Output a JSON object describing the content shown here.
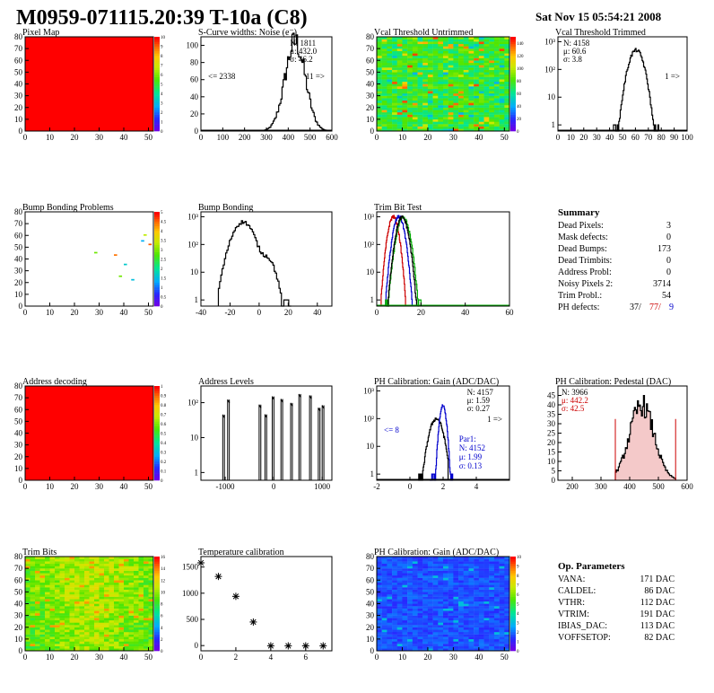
{
  "page": {
    "title": "M0959-071115.20:39 T-10a (C8)",
    "date": "Sat Nov 15 05:54:21 2008"
  },
  "chart_data": [
    {
      "id": "pixel-map",
      "type": "heatmap",
      "title": "Pixel Map",
      "xlim": [
        0,
        52
      ],
      "ylim": [
        0,
        80
      ],
      "xticks": [
        "0",
        "10",
        "20",
        "30",
        "40",
        "50"
      ],
      "yticks": [
        "0",
        "10",
        "20",
        "30",
        "40",
        "50",
        "60",
        "70",
        "80"
      ],
      "zlim": [
        0,
        10
      ],
      "zticks": [
        "0",
        "1",
        "2",
        "3",
        "4",
        "5",
        "6",
        "7",
        "8",
        "9",
        "10"
      ],
      "fill": "uniform-max",
      "value": 10
    },
    {
      "id": "scurve-widths",
      "type": "histogram",
      "title": "S-Curve widths: Noise (e⁻)",
      "xlim": [
        0,
        600
      ],
      "xticks": [
        "0",
        "100",
        "200",
        "300",
        "400",
        "500",
        "600"
      ],
      "ylim": [
        0,
        110
      ],
      "yticks": [
        "0",
        "20",
        "40",
        "60",
        "80",
        "100"
      ],
      "ylog": false,
      "stats": [
        {
          "text": "N: 1811"
        },
        {
          "text": "μ: 432.0"
        },
        {
          "text": "σ: 46.2"
        }
      ],
      "notes": [
        {
          "text": "<= 2338",
          "pos": "left"
        },
        {
          "text": "11 =>",
          "pos": "right"
        }
      ],
      "series": [
        {
          "color": "#000",
          "mu": 432,
          "sigma": 46.2,
          "peak": 104,
          "lo": 285,
          "hi": 590
        }
      ]
    },
    {
      "id": "vcal-untrimmed",
      "type": "heatmap",
      "title": "Vcal Threshold Untrimmed",
      "xlim": [
        0,
        52
      ],
      "ylim": [
        0,
        80
      ],
      "xticks": [
        "0",
        "10",
        "20",
        "30",
        "40",
        "50"
      ],
      "yticks": [
        "0",
        "10",
        "20",
        "30",
        "40",
        "50",
        "60",
        "70",
        "80"
      ],
      "zlim": [
        0,
        150
      ],
      "zticks": [
        "0",
        "20",
        "40",
        "60",
        "80",
        "100",
        "120",
        "140"
      ],
      "fill": "noisy-green",
      "mean": 60
    },
    {
      "id": "vcal-trimmed",
      "type": "histogram",
      "title": "Vcal Threshold Trimmed",
      "xlim": [
        0,
        100
      ],
      "xticks": [
        "0",
        "10",
        "20",
        "30",
        "40",
        "50",
        "60",
        "70",
        "80",
        "90",
        "100"
      ],
      "ylim": [
        0.6,
        1500
      ],
      "ylog": true,
      "yticks": [
        {
          "v": 1,
          "t": "1"
        },
        {
          "v": 10,
          "t": "10"
        },
        {
          "v": 100,
          "t": "10²"
        },
        {
          "v": 1000,
          "t": "10³"
        }
      ],
      "stats": [
        {
          "text": "N: 4158"
        },
        {
          "text": "μ: 60.6"
        },
        {
          "text": "σ: 3.8"
        }
      ],
      "notes": [
        {
          "text": "1 =>",
          "pos": "right"
        }
      ],
      "series": [
        {
          "color": "#000",
          "mu": 60.6,
          "sigma": 3.8,
          "peak": 500,
          "lo": 43,
          "hi": 78
        }
      ]
    },
    {
      "id": "bump-problems",
      "type": "heatmap",
      "title": "Bump Bonding Problems",
      "xlim": [
        0,
        52
      ],
      "ylim": [
        0,
        80
      ],
      "xticks": [
        "0",
        "10",
        "20",
        "30",
        "40",
        "50"
      ],
      "yticks": [
        "0",
        "10",
        "20",
        "30",
        "40",
        "50",
        "60",
        "70",
        "80"
      ],
      "zlim": [
        0,
        5
      ],
      "zticks": [
        "0",
        "0.5",
        "1",
        "1.5",
        "2",
        "2.5",
        "3",
        "3.5",
        "4",
        "4.5",
        "5"
      ],
      "fill": "sparse",
      "points": [
        [
          50,
          52
        ],
        [
          47,
          55
        ],
        [
          48,
          60
        ],
        [
          40,
          35
        ],
        [
          38,
          25
        ],
        [
          43,
          22
        ],
        [
          36,
          43
        ],
        [
          28,
          45
        ]
      ]
    },
    {
      "id": "bump-bonding",
      "type": "histogram",
      "title": "Bump Bonding",
      "xlim": [
        -40,
        50
      ],
      "xticks": [
        "-40",
        "-20",
        "0",
        "20",
        "40"
      ],
      "ylim": [
        0.6,
        1500
      ],
      "ylog": true,
      "yticks": [
        {
          "v": 1,
          "t": "1"
        },
        {
          "v": 10,
          "t": "10"
        },
        {
          "v": 100,
          "t": "10²"
        },
        {
          "v": 1000,
          "t": "10³"
        }
      ],
      "stats": [],
      "notes": [],
      "series": [
        {
          "color": "#000",
          "mu": -11,
          "sigma": 5,
          "peak": 650,
          "lo": -28,
          "hi": 22,
          "mu2": 5,
          "sigma2": 4,
          "peak2": 35
        }
      ]
    },
    {
      "id": "trim-bit-test",
      "type": "histogram",
      "title": "Trim Bit Test",
      "xlim": [
        0,
        60
      ],
      "xticks": [
        "0",
        "20",
        "40",
        "60"
      ],
      "ylim": [
        0.6,
        1500
      ],
      "ylog": true,
      "yticks": [
        {
          "v": 1,
          "t": "1"
        },
        {
          "v": 10,
          "t": "10"
        },
        {
          "v": 100,
          "t": "10²"
        },
        {
          "v": 1000,
          "t": "10³"
        }
      ],
      "stats": [],
      "notes": [],
      "series": [
        {
          "color": "#cc0000",
          "mu": 7.5,
          "sigma": 1.5,
          "peak": 1000,
          "lo": 2,
          "hi": 13
        },
        {
          "color": "#0000cc",
          "mu": 10,
          "sigma": 1.6,
          "peak": 1000,
          "lo": 4,
          "hi": 16
        },
        {
          "color": "#00aa00",
          "mu": 12,
          "sigma": 1.8,
          "peak": 900,
          "lo": 4,
          "hi": 20
        },
        {
          "color": "#000000",
          "mu": 11.5,
          "sigma": 1.7,
          "peak": 950,
          "lo": 5,
          "hi": 18
        }
      ]
    },
    {
      "id": "summary",
      "type": "table",
      "title": "Summary",
      "rows": [
        {
          "label": "Dead Pixels:",
          "value": "3"
        },
        {
          "label": "Mask defects:",
          "value": "0"
        },
        {
          "label": "Dead Bumps:",
          "value": "173"
        },
        {
          "label": "Dead Trimbits:",
          "value": "0"
        },
        {
          "label": "Address Probl:",
          "value": "0"
        },
        {
          "label": "Noisy Pixels 2:",
          "value": "3714"
        },
        {
          "label": "Trim Probl.:",
          "value": "54"
        }
      ],
      "ph_label": "PH defects:",
      "ph_values": [
        {
          "text": "37/",
          "color": "#000"
        },
        {
          "text": "77/",
          "color": "#cc0000"
        },
        {
          "text": "9",
          "color": "#0000cc"
        }
      ]
    },
    {
      "id": "address-decoding",
      "type": "heatmap",
      "title": "Address decoding",
      "xlim": [
        0,
        52
      ],
      "ylim": [
        0,
        80
      ],
      "xticks": [
        "0",
        "10",
        "20",
        "30",
        "40",
        "50"
      ],
      "yticks": [
        "0",
        "10",
        "20",
        "30",
        "40",
        "50",
        "60",
        "70",
        "80"
      ],
      "zlim": [
        0,
        1
      ],
      "zticks": [
        "0",
        "0.1",
        "0.2",
        "0.3",
        "0.4",
        "0.5",
        "0.6",
        "0.7",
        "0.8",
        "0.9",
        "1"
      ],
      "fill": "uniform-max",
      "value": 1
    },
    {
      "id": "address-levels",
      "type": "histogram",
      "title": "Address Levels",
      "xlim": [
        -1500,
        1200
      ],
      "xticks": [
        "-1000",
        "0",
        "1000"
      ],
      "ylim": [
        0.6,
        300
      ],
      "ylog": true,
      "yticks": [
        {
          "v": 1,
          "t": "1"
        },
        {
          "v": 10,
          "t": "10"
        },
        {
          "v": 100,
          "t": "10²"
        }
      ],
      "stats": [],
      "notes": [],
      "series": [
        {
          "color": "#000",
          "spikes": [
            -1050,
            -950,
            -300,
            -180,
            -30,
            150,
            350,
            520,
            740,
            920,
            1000
          ]
        }
      ]
    },
    {
      "id": "ph-gain",
      "type": "histogram",
      "title": "PH Calibration: Gain (ADC/DAC)",
      "xlim": [
        -2,
        6
      ],
      "xticks": [
        "-2",
        "0",
        "2",
        "4"
      ],
      "ylim": [
        0.6,
        1500
      ],
      "ylog": true,
      "yticks": [
        {
          "v": 1,
          "t": "1"
        },
        {
          "v": 10,
          "t": "10"
        },
        {
          "v": 100,
          "t": "10²"
        },
        {
          "v": 1000,
          "t": "10³"
        }
      ],
      "stats": [
        {
          "text": "N: 4157"
        },
        {
          "text": "μ: 1.59"
        },
        {
          "text": "σ: 0.27"
        }
      ],
      "notes": [
        {
          "text": "<= 8",
          "pos": "left",
          "color": "#0000cc"
        },
        {
          "text": "1 =>",
          "pos": "right"
        }
      ],
      "stats2": [
        {
          "text": "Par1:"
        },
        {
          "text": "N: 4152"
        },
        {
          "text": "μ: 1.99"
        },
        {
          "text": "σ: 0.13"
        }
      ],
      "series": [
        {
          "color": "#000",
          "mu": 1.59,
          "sigma": 0.27,
          "peak": 100,
          "lo": 0.5,
          "hi": 2.3
        },
        {
          "color": "#0000cc",
          "mu": 1.99,
          "sigma": 0.13,
          "peak": 300,
          "lo": 1.2,
          "hi": 2.6
        }
      ]
    },
    {
      "id": "ph-pedestal",
      "type": "histogram",
      "title": "PH Calibration: Pedestal (DAC)",
      "xlim": [
        150,
        600
      ],
      "xticks": [
        "200",
        "300",
        "400",
        "500",
        "600"
      ],
      "ylim": [
        0,
        50
      ],
      "yticks": [
        "0",
        "5",
        "10",
        "15",
        "20",
        "25",
        "30",
        "35",
        "40",
        "45"
      ],
      "ylog": false,
      "stats": [
        {
          "text": "N: 3966"
        },
        {
          "text": "μ: 442.2",
          "color": "#cc0000"
        },
        {
          "text": "σ: 42.5",
          "color": "#cc0000"
        }
      ],
      "notes": [],
      "series": [
        {
          "color": "#000",
          "mu": 442.2,
          "sigma": 42.5,
          "peak": 40,
          "lo": 350,
          "hi": 560
        }
      ]
    },
    {
      "id": "trim-bits",
      "type": "heatmap",
      "title": "Trim Bits",
      "xlim": [
        0,
        52
      ],
      "ylim": [
        0,
        80
      ],
      "xticks": [
        "0",
        "10",
        "20",
        "30",
        "40",
        "50"
      ],
      "yticks": [
        "0",
        "10",
        "20",
        "30",
        "40",
        "50",
        "60",
        "70",
        "80"
      ],
      "zlim": [
        0,
        16
      ],
      "zticks": [
        "0",
        "2",
        "4",
        "6",
        "8",
        "10",
        "12",
        "14",
        "16"
      ],
      "fill": "trim"
    },
    {
      "id": "temperature-calibration",
      "type": "scatter",
      "title": "Temperature calibration",
      "xlim": [
        0,
        7.5
      ],
      "xticks": [
        "0",
        "2",
        "4",
        "6"
      ],
      "ylim": [
        -100,
        1700
      ],
      "yticks": [
        "0",
        "500",
        "1000",
        "1500"
      ],
      "points": [
        [
          0,
          1580
        ],
        [
          1,
          1320
        ],
        [
          2,
          940
        ],
        [
          3,
          450
        ],
        [
          4,
          -5
        ],
        [
          5,
          -5
        ],
        [
          6,
          -5
        ],
        [
          7,
          -5
        ]
      ]
    },
    {
      "id": "ph-gain-map",
      "type": "heatmap",
      "title": "PH Calibration: Gain (ADC/DAC)",
      "xlim": [
        0,
        52
      ],
      "ylim": [
        0,
        80
      ],
      "xticks": [
        "0",
        "10",
        "20",
        "30",
        "40",
        "50"
      ],
      "yticks": [
        "0",
        "10",
        "20",
        "30",
        "40",
        "50",
        "60",
        "70",
        "80"
      ],
      "zlim": [
        0,
        10
      ],
      "zticks": [
        "0",
        "1",
        "2",
        "3",
        "4",
        "5",
        "6",
        "7",
        "8",
        "9",
        "10"
      ],
      "fill": "blue"
    },
    {
      "id": "op-parameters",
      "type": "table",
      "title": "Op. Parameters",
      "rows": [
        {
          "label": "VANA:",
          "value": "171 DAC"
        },
        {
          "label": "CALDEL:",
          "value": "86 DAC"
        },
        {
          "label": "VTHR:",
          "value": "112 DAC"
        },
        {
          "label": "VTRIM:",
          "value": "191 DAC"
        },
        {
          "label": "IBIAS_DAC:",
          "value": "113 DAC"
        },
        {
          "label": "VOFFSETOP:",
          "value": "82 DAC"
        }
      ]
    }
  ]
}
